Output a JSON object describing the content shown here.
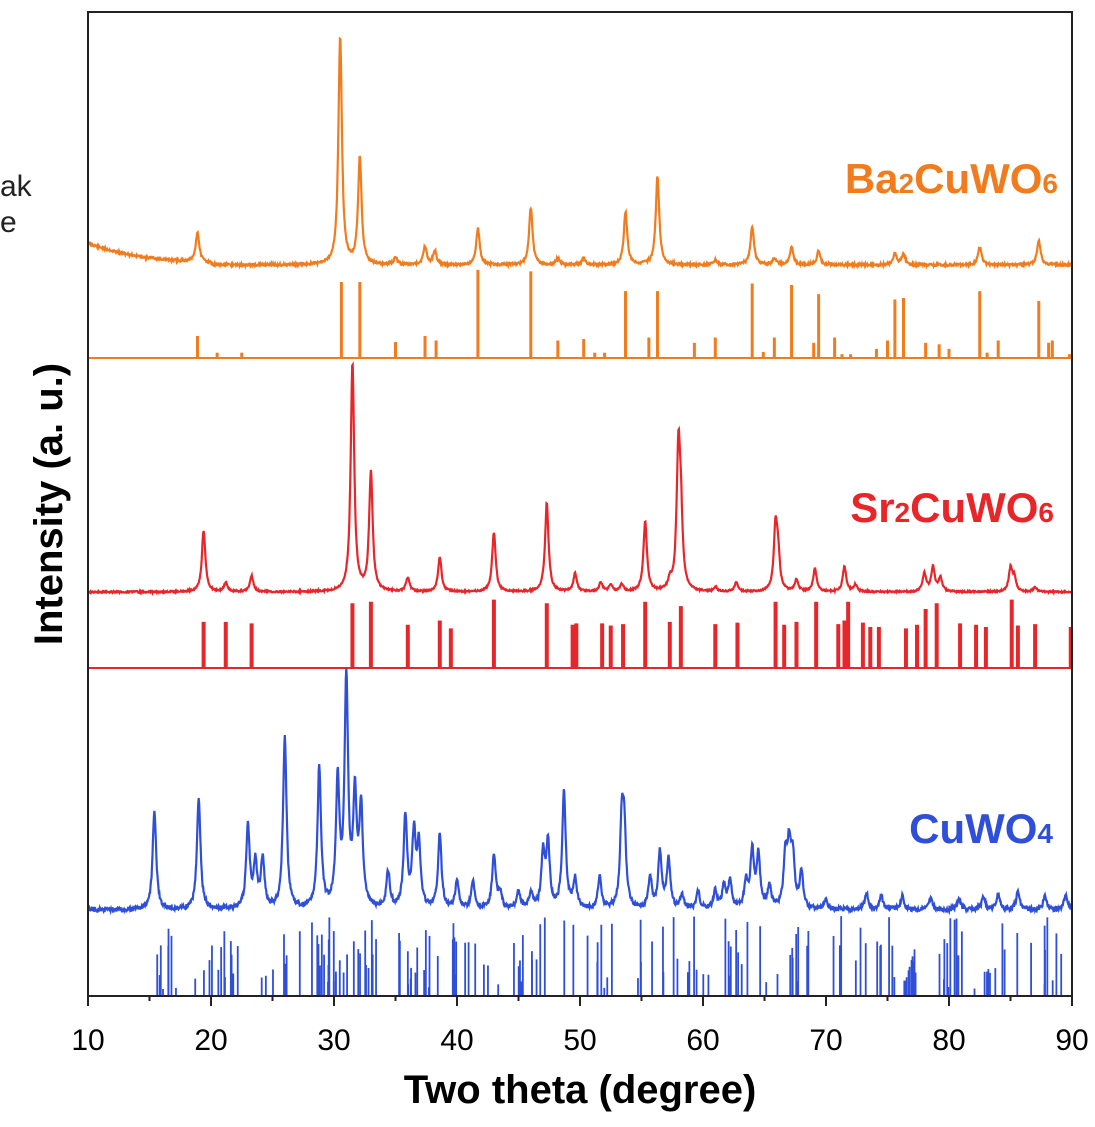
{
  "fragments": {
    "line1": "ak",
    "line2": "e"
  },
  "chart_data": {
    "type": "line",
    "title": "",
    "xlabel": "Two theta (degree)",
    "ylabel": "Intensity (a. u.)",
    "xlim": [
      10,
      90
    ],
    "xticks": [
      "10",
      "20",
      "30",
      "40",
      "50",
      "60",
      "70",
      "80",
      "90"
    ],
    "grid": false,
    "series": [
      {
        "name": "Ba2CuWO6",
        "label_main": "Ba",
        "label_parts": [
          [
            "Ba",
            false
          ],
          [
            "2",
            true
          ],
          [
            "CuWO",
            false
          ],
          [
            "6",
            true
          ]
        ],
        "color": "#f07c1e",
        "baseline": 265,
        "scale": 1,
        "offset_norm": 0.76,
        "pattern": {
          "x": [
            18.9,
            30.5,
            32.1,
            35.0,
            37.4,
            38.2,
            41.7,
            46.0,
            48.2,
            50.3,
            53.7,
            56.3,
            61.0,
            64.0,
            65.8,
            67.2,
            69.4,
            75.6,
            76.3,
            82.5,
            87.3
          ],
          "y": [
            0.13,
            1.0,
            0.47,
            0.03,
            0.08,
            0.06,
            0.16,
            0.25,
            0.03,
            0.03,
            0.23,
            0.39,
            0.02,
            0.17,
            0.03,
            0.08,
            0.06,
            0.05,
            0.05,
            0.08,
            0.11
          ]
        },
        "reference": {
          "x": [
            18.9,
            20.5,
            22.5,
            30.6,
            32.1,
            35.0,
            37.4,
            38.3,
            41.7,
            46.0,
            48.2,
            50.3,
            51.2,
            52.0,
            53.7,
            55.6,
            56.3,
            59.3,
            61.0,
            64.0,
            64.9,
            65.8,
            67.2,
            69.0,
            69.4,
            70.7,
            71.3,
            72.0,
            74.1,
            75.0,
            75.6,
            76.3,
            78.1,
            79.2,
            80.0,
            82.5,
            83.1,
            84.0,
            87.3,
            88.1,
            88.4,
            89.8
          ],
          "y": [
            0.29,
            0.07,
            0.07,
            1.0,
            1.0,
            0.21,
            0.29,
            0.23,
            1.16,
            1.14,
            0.23,
            0.25,
            0.07,
            0.07,
            0.88,
            0.27,
            0.88,
            0.2,
            0.27,
            0.98,
            0.08,
            0.27,
            0.96,
            0.2,
            0.84,
            0.27,
            0.05,
            0.05,
            0.12,
            0.23,
            0.77,
            0.79,
            0.2,
            0.18,
            0.12,
            0.88,
            0.07,
            0.23,
            0.75,
            0.2,
            0.23,
            0.05
          ]
        }
      },
      {
        "name": "Sr2CuWO6",
        "label_parts": [
          [
            "Sr",
            false
          ],
          [
            "2",
            true
          ],
          [
            "CuWO",
            false
          ],
          [
            "6",
            true
          ]
        ],
        "color": "#e8262a",
        "baseline": 592,
        "scale": 1,
        "pattern": {
          "x": [
            19.4,
            21.2,
            23.3,
            31.5,
            33.0,
            36.0,
            38.6,
            43.0,
            47.3,
            49.6,
            51.7,
            52.5,
            53.4,
            55.3,
            57.3,
            58.0,
            58.2,
            61.0,
            62.7,
            65.9,
            66.1,
            67.6,
            69.1,
            71.5,
            72.4,
            78.0,
            78.7,
            79.3,
            85.0,
            85.3,
            87.0
          ],
          "y": [
            0.27,
            0.04,
            0.07,
            1.0,
            0.52,
            0.06,
            0.15,
            0.26,
            0.39,
            0.08,
            0.04,
            0.03,
            0.03,
            0.31,
            0.04,
            0.59,
            0.28,
            0.02,
            0.04,
            0.27,
            0.14,
            0.05,
            0.1,
            0.11,
            0.03,
            0.08,
            0.11,
            0.06,
            0.1,
            0.06,
            0.02
          ]
        },
        "reference": {
          "x": [
            19.4,
            21.2,
            23.3,
            31.5,
            33.0,
            36.0,
            38.6,
            39.5,
            43.0,
            47.3,
            49.4,
            49.7,
            51.8,
            52.5,
            53.5,
            55.3,
            57.3,
            58.2,
            61.0,
            62.8,
            65.9,
            66.6,
            67.6,
            69.2,
            71.0,
            71.5,
            71.8,
            73.0,
            73.6,
            74.3,
            76.5,
            77.4,
            78.1,
            79.0,
            80.9,
            82.2,
            83.0,
            85.1,
            85.6,
            87.0,
            89.9
          ],
          "y": [
            0.64,
            0.64,
            0.62,
            0.9,
            0.92,
            0.6,
            0.66,
            0.55,
            0.95,
            0.9,
            0.6,
            0.62,
            0.62,
            0.59,
            0.61,
            0.92,
            0.64,
            0.86,
            0.61,
            0.63,
            0.92,
            0.6,
            0.64,
            0.92,
            0.61,
            0.66,
            0.92,
            0.63,
            0.57,
            0.57,
            0.55,
            0.6,
            0.82,
            0.9,
            0.62,
            0.6,
            0.57,
            0.95,
            0.59,
            0.61,
            0.57
          ]
        }
      },
      {
        "name": "CuWO4",
        "label_parts": [
          [
            "CuWO",
            false
          ],
          [
            "4",
            true
          ]
        ],
        "color": "#2f4fd8",
        "baseline": 910,
        "scale": 1,
        "pattern": {
          "x": [
            15.4,
            19.0,
            23.0,
            23.6,
            24.2,
            26.0,
            28.8,
            30.3,
            31.0,
            31.7,
            32.2,
            34.4,
            35.8,
            36.5,
            36.9,
            38.6,
            40.0,
            41.3,
            43.0,
            43.5,
            45.0,
            46.0,
            47.0,
            47.4,
            48.7,
            49.6,
            51.6,
            53.4,
            53.6,
            55.7,
            56.5,
            57.2,
            58.3,
            59.6,
            61.0,
            61.7,
            62.2,
            63.5,
            64.0,
            64.5,
            65.4,
            66.7,
            67.0,
            67.3,
            68.0,
            70.0,
            73.3,
            74.5,
            76.2,
            78.5,
            80.8,
            82.8,
            84.0,
            85.6,
            87.8,
            89.5
          ],
          "y": [
            0.44,
            0.5,
            0.36,
            0.2,
            0.22,
            0.76,
            0.63,
            0.56,
            1.0,
            0.48,
            0.43,
            0.16,
            0.41,
            0.32,
            0.27,
            0.33,
            0.12,
            0.12,
            0.24,
            0.07,
            0.08,
            0.07,
            0.24,
            0.28,
            0.52,
            0.13,
            0.14,
            0.37,
            0.31,
            0.14,
            0.25,
            0.22,
            0.06,
            0.08,
            0.08,
            0.1,
            0.12,
            0.12,
            0.25,
            0.23,
            0.1,
            0.22,
            0.25,
            0.22,
            0.16,
            0.04,
            0.07,
            0.06,
            0.06,
            0.05,
            0.05,
            0.06,
            0.07,
            0.08,
            0.06,
            0.07
          ]
        },
        "reference_range": [
          15.2,
          89.9
        ],
        "reference_count": 180
      }
    ]
  },
  "colors": {
    "axis": "#222222",
    "text": "#000000"
  }
}
